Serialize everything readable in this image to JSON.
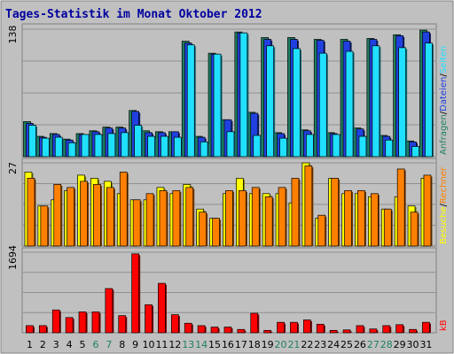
{
  "chart_data": {
    "type": "bar",
    "title": "Tages-Statistik im Monat Oktober 2012",
    "categories": [
      "1",
      "2",
      "3",
      "4",
      "5",
      "6",
      "7",
      "8",
      "9",
      "10",
      "11",
      "12",
      "13",
      "14",
      "15",
      "16",
      "17",
      "18",
      "19",
      "20",
      "21",
      "22",
      "23",
      "24",
      "25",
      "26",
      "27",
      "28",
      "29",
      "30",
      "31"
    ],
    "weekend_days": [
      "6",
      "7",
      "13",
      "14",
      "20",
      "21",
      "27",
      "28"
    ],
    "panels": [
      {
        "ymax_label": "138",
        "ymax": 138,
        "grid": true,
        "series": [
          {
            "name": "Anfragen",
            "color": "#208060",
            "values": [
              38,
              22,
              25,
              19,
              25,
              28,
              32,
              32,
              50,
              28,
              27,
              27,
              125,
              22,
              112,
              40,
              135,
              48,
              129,
              26,
              129,
              29,
              127,
              26,
              127,
              31,
              128,
              23,
              132,
              17,
              137
            ]
          },
          {
            "name": "Dateien",
            "color": "#2040e0",
            "values": [
              36,
              21,
              24,
              18,
              24,
              27,
              31,
              31,
              49,
              26,
              26,
              27,
              123,
              21,
              111,
              40,
              134,
              47,
              127,
              25,
              127,
              28,
              126,
              25,
              125,
              30,
              127,
              22,
              131,
              16,
              135
            ]
          },
          {
            "name": "Seiten",
            "color": "#20e0ff",
            "values": [
              34,
              20,
              21,
              15,
              24,
              24,
              25,
              26,
              34,
              22,
              22,
              21,
              121,
              16,
              111,
              27,
              134,
              23,
              120,
              20,
              117,
              24,
              112,
              24,
              114,
              22,
              120,
              18,
              118,
              11,
              123
            ]
          }
        ],
        "right_labels": [
          {
            "text": "Anfragen",
            "color": "#208060"
          },
          {
            "text": "Dateien",
            "color": "#2040e0"
          },
          {
            "text": "Seiten",
            "color": "#20e0ff"
          }
        ]
      },
      {
        "ymax_label": "27",
        "ymax": 27,
        "grid": true,
        "series": [
          {
            "name": "Besuche",
            "color": "#ffff00",
            "values": [
              24,
              13,
              15,
              18,
              23,
              22,
              21,
              17,
              15,
              15,
              19,
              17,
              20,
              12,
              9,
              17,
              22,
              17,
              17,
              17,
              14,
              27,
              9,
              22,
              17,
              17,
              16,
              12,
              16,
              13,
              22
            ]
          },
          {
            "name": "Rechner",
            "color": "#ff8000",
            "values": [
              22,
              13,
              20,
              19,
              21,
              20,
              19,
              24,
              15,
              17,
              18,
              18,
              19,
              11,
              9,
              18,
              18,
              19,
              16,
              19,
              22,
              26,
              10,
              22,
              18,
              18,
              17,
              12,
              25,
              11,
              23
            ]
          }
        ],
        "right_labels": [
          {
            "text": "Besuche",
            "color": "#ffff00"
          },
          {
            "text": "Rechner",
            "color": "#ff8000"
          }
        ]
      },
      {
        "ymax_label": "1694",
        "ymax": 1694,
        "grid": true,
        "series": [
          {
            "name": "kB",
            "color": "#ff0000",
            "values": [
              150,
              150,
              480,
              320,
              440,
              440,
              930,
              360,
              1660,
              590,
              1040,
              380,
              200,
              150,
              120,
              120,
              70,
              410,
              50,
              220,
              220,
              270,
              180,
              50,
              60,
              150,
              80,
              150,
              170,
              70,
              220
            ]
          }
        ],
        "right_labels": [
          {
            "text": "kB",
            "color": "#ff0000"
          }
        ]
      }
    ]
  }
}
